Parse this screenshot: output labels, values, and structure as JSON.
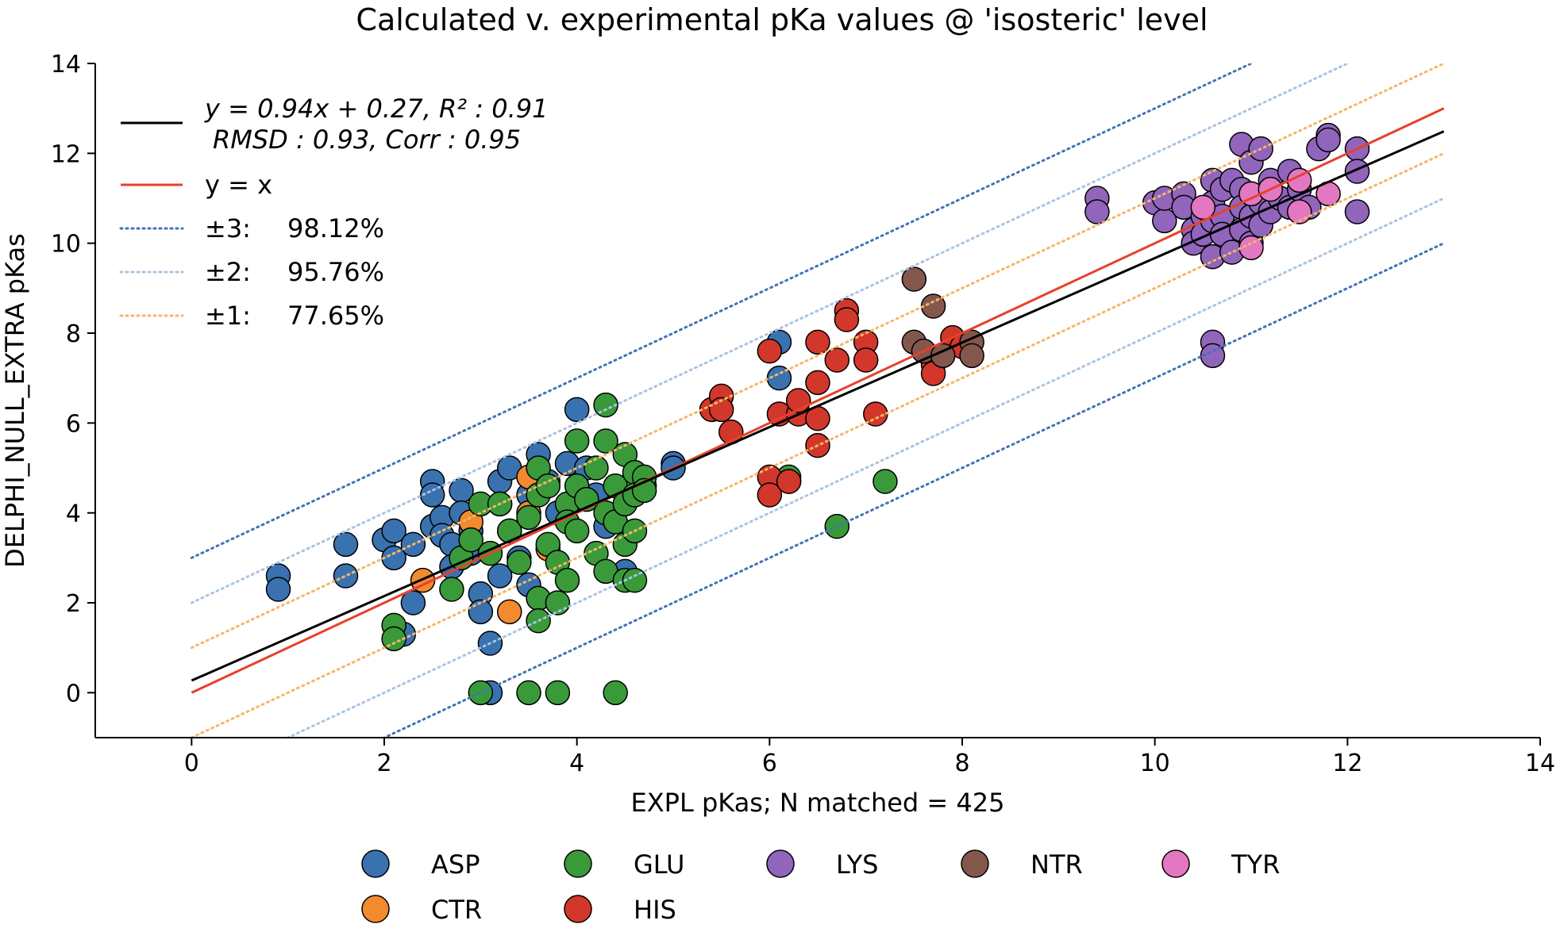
{
  "chart_data": {
    "type": "scatter",
    "title": "Calculated v. experimental pKa values @ 'isosteric' level",
    "xlabel": "EXPL pKas; N matched = 425",
    "ylabel": "DELPHI_NULL_EXTRA pKas",
    "xlim": [
      -1,
      14
    ],
    "ylim": [
      -1,
      14
    ],
    "xticks": [
      0,
      2,
      4,
      6,
      8,
      10,
      12,
      14
    ],
    "yticks": [
      0,
      2,
      4,
      6,
      8,
      10,
      12,
      14
    ],
    "lines": [
      {
        "name": "fit",
        "label_line1": "y = 0.94x + 0.27, R² : 0.91",
        "label_line2": "RMSD : 0.93, Corr : 0.95",
        "slope": 0.94,
        "intercept": 0.27,
        "color": "#000000",
        "style": "solid"
      },
      {
        "name": "identity",
        "label": "y = x",
        "slope": 1,
        "intercept": 0,
        "color": "#e8402a",
        "style": "solid"
      },
      {
        "name": "band3",
        "label_key": "±3:",
        "label_value": "98.12%",
        "offset": 3,
        "color": "#3f74b4",
        "style": "dotted"
      },
      {
        "name": "band2",
        "label_key": "±2:",
        "label_value": "95.76%",
        "offset": 2,
        "color": "#a9c4e2",
        "style": "dotted"
      },
      {
        "name": "band1",
        "label_key": "±1:",
        "label_value": "77.65%",
        "offset": 1,
        "color": "#f5b66a",
        "style": "dotted"
      }
    ],
    "series": [
      {
        "name": "ASP",
        "color": "#3a72b0",
        "points": [
          [
            0.9,
            2.6
          ],
          [
            0.9,
            2.3
          ],
          [
            1.6,
            3.3
          ],
          [
            1.6,
            2.6
          ],
          [
            2.0,
            3.4
          ],
          [
            2.1,
            3.6
          ],
          [
            2.1,
            3.0
          ],
          [
            2.3,
            3.3
          ],
          [
            2.2,
            1.3
          ],
          [
            2.3,
            2.0
          ],
          [
            2.5,
            4.7
          ],
          [
            2.5,
            4.4
          ],
          [
            2.5,
            3.7
          ],
          [
            2.6,
            3.9
          ],
          [
            2.6,
            3.5
          ],
          [
            2.7,
            3.3
          ],
          [
            2.7,
            2.8
          ],
          [
            2.8,
            4.5
          ],
          [
            2.8,
            4.0
          ],
          [
            2.9,
            3.6
          ],
          [
            2.9,
            3.1
          ],
          [
            3.0,
            2.2
          ],
          [
            3.0,
            1.8
          ],
          [
            3.1,
            1.1
          ],
          [
            3.1,
            0.0
          ],
          [
            3.2,
            4.7
          ],
          [
            3.3,
            5.0
          ],
          [
            3.2,
            4.2
          ],
          [
            3.3,
            3.6
          ],
          [
            3.4,
            3.0
          ],
          [
            3.2,
            2.6
          ],
          [
            3.5,
            2.4
          ],
          [
            3.5,
            4.4
          ],
          [
            3.6,
            5.3
          ],
          [
            3.7,
            4.7
          ],
          [
            3.8,
            4.0
          ],
          [
            3.9,
            5.1
          ],
          [
            4.0,
            6.3
          ],
          [
            4.1,
            5.0
          ],
          [
            4.2,
            4.4
          ],
          [
            4.3,
            3.7
          ],
          [
            4.5,
            2.7
          ],
          [
            4.7,
            4.6
          ],
          [
            5.0,
            5.1
          ],
          [
            5.0,
            5.0
          ],
          [
            6.1,
            7.8
          ],
          [
            6.1,
            7.0
          ]
        ]
      },
      {
        "name": "CTR",
        "color": "#f28a2e",
        "points": [
          [
            2.4,
            2.5
          ],
          [
            2.9,
            3.8
          ],
          [
            3.3,
            1.8
          ],
          [
            3.5,
            4.8
          ],
          [
            3.5,
            4.0
          ],
          [
            3.7,
            3.2
          ]
        ]
      },
      {
        "name": "GLU",
        "color": "#3a9a3a",
        "points": [
          [
            2.1,
            1.5
          ],
          [
            2.1,
            1.2
          ],
          [
            2.7,
            2.3
          ],
          [
            2.8,
            3.0
          ],
          [
            2.9,
            3.4
          ],
          [
            3.0,
            4.2
          ],
          [
            3.1,
            3.1
          ],
          [
            3.2,
            4.2
          ],
          [
            3.3,
            3.6
          ],
          [
            3.4,
            2.9
          ],
          [
            3.5,
            3.9
          ],
          [
            3.5,
            0.0
          ],
          [
            3.6,
            5.0
          ],
          [
            3.6,
            4.4
          ],
          [
            3.6,
            2.1
          ],
          [
            3.6,
            1.6
          ],
          [
            3.7,
            4.6
          ],
          [
            3.7,
            3.3
          ],
          [
            3.8,
            2.9
          ],
          [
            3.8,
            2.0
          ],
          [
            3.8,
            0.0
          ],
          [
            3.9,
            4.2
          ],
          [
            3.9,
            3.8
          ],
          [
            3.9,
            2.5
          ],
          [
            4.0,
            5.6
          ],
          [
            4.0,
            4.6
          ],
          [
            4.0,
            3.6
          ],
          [
            4.1,
            4.3
          ],
          [
            4.2,
            5.0
          ],
          [
            4.2,
            3.1
          ],
          [
            4.3,
            6.4
          ],
          [
            4.3,
            5.6
          ],
          [
            4.3,
            4.0
          ],
          [
            4.3,
            2.7
          ],
          [
            4.4,
            4.6
          ],
          [
            4.4,
            3.8
          ],
          [
            4.4,
            0.0
          ],
          [
            4.5,
            5.3
          ],
          [
            4.5,
            4.2
          ],
          [
            4.5,
            3.3
          ],
          [
            4.5,
            2.5
          ],
          [
            4.6,
            4.9
          ],
          [
            4.6,
            4.4
          ],
          [
            4.6,
            3.6
          ],
          [
            4.6,
            2.5
          ],
          [
            4.7,
            4.8
          ],
          [
            4.7,
            4.5
          ],
          [
            6.2,
            4.8
          ],
          [
            6.2,
            4.7
          ],
          [
            6.7,
            3.7
          ],
          [
            7.2,
            4.7
          ],
          [
            3.0,
            0.0
          ]
        ]
      },
      {
        "name": "HIS",
        "color": "#d2372b",
        "points": [
          [
            5.4,
            6.3
          ],
          [
            5.5,
            6.6
          ],
          [
            5.5,
            6.3
          ],
          [
            5.6,
            5.8
          ],
          [
            6.0,
            7.6
          ],
          [
            6.0,
            4.8
          ],
          [
            6.0,
            4.4
          ],
          [
            6.1,
            6.2
          ],
          [
            6.2,
            4.7
          ],
          [
            6.3,
            6.2
          ],
          [
            6.3,
            6.5
          ],
          [
            6.5,
            7.8
          ],
          [
            6.5,
            6.9
          ],
          [
            6.5,
            6.1
          ],
          [
            6.5,
            5.5
          ],
          [
            6.7,
            7.4
          ],
          [
            6.8,
            8.5
          ],
          [
            6.8,
            8.3
          ],
          [
            7.0,
            7.8
          ],
          [
            7.0,
            7.4
          ],
          [
            7.1,
            6.2
          ],
          [
            7.7,
            7.3
          ],
          [
            7.7,
            7.1
          ],
          [
            7.9,
            7.9
          ],
          [
            8.0,
            7.7
          ]
        ]
      },
      {
        "name": "LYS",
        "color": "#9065bb",
        "points": [
          [
            9.4,
            11.0
          ],
          [
            9.4,
            10.7
          ],
          [
            10.0,
            10.9
          ],
          [
            10.1,
            10.5
          ],
          [
            10.1,
            11.0
          ],
          [
            10.3,
            11.1
          ],
          [
            10.3,
            10.8
          ],
          [
            10.4,
            10.3
          ],
          [
            10.4,
            10.0
          ],
          [
            10.5,
            10.6
          ],
          [
            10.5,
            10.2
          ],
          [
            10.6,
            11.4
          ],
          [
            10.6,
            10.9
          ],
          [
            10.6,
            10.5
          ],
          [
            10.6,
            9.7
          ],
          [
            10.6,
            7.8
          ],
          [
            10.6,
            7.5
          ],
          [
            10.7,
            11.2
          ],
          [
            10.7,
            10.6
          ],
          [
            10.7,
            10.2
          ],
          [
            10.8,
            11.4
          ],
          [
            10.8,
            9.8
          ],
          [
            10.9,
            12.2
          ],
          [
            10.9,
            11.2
          ],
          [
            10.9,
            10.8
          ],
          [
            10.9,
            10.3
          ],
          [
            11.0,
            11.8
          ],
          [
            11.0,
            11.1
          ],
          [
            11.0,
            10.6
          ],
          [
            11.0,
            10.0
          ],
          [
            11.1,
            12.1
          ],
          [
            11.1,
            10.9
          ],
          [
            11.1,
            10.4
          ],
          [
            11.2,
            11.4
          ],
          [
            11.2,
            10.7
          ],
          [
            11.3,
            11.0
          ],
          [
            11.4,
            11.6
          ],
          [
            11.4,
            10.8
          ],
          [
            11.5,
            11.2
          ],
          [
            11.6,
            10.8
          ],
          [
            11.7,
            12.1
          ],
          [
            11.8,
            12.4
          ],
          [
            11.8,
            12.3
          ],
          [
            12.1,
            12.1
          ],
          [
            12.1,
            11.6
          ],
          [
            12.1,
            10.7
          ]
        ]
      },
      {
        "name": "NTR",
        "color": "#84574d",
        "points": [
          [
            7.5,
            9.2
          ],
          [
            7.5,
            7.8
          ],
          [
            7.6,
            7.6
          ],
          [
            7.7,
            8.6
          ],
          [
            7.8,
            7.5
          ],
          [
            8.1,
            7.8
          ],
          [
            8.1,
            7.5
          ]
        ]
      },
      {
        "name": "TYR",
        "color": "#e377c2",
        "points": [
          [
            10.5,
            10.8
          ],
          [
            11.0,
            9.9
          ],
          [
            11.0,
            11.1
          ],
          [
            11.2,
            11.2
          ],
          [
            11.5,
            11.4
          ],
          [
            11.5,
            10.7
          ],
          [
            11.8,
            11.1
          ]
        ]
      }
    ]
  }
}
